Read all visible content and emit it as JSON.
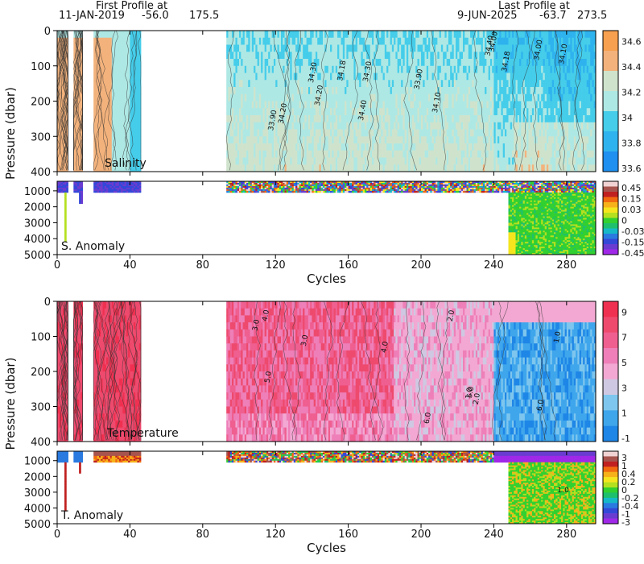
{
  "header": {
    "first_profile_label": "First Profile at",
    "first_profile_date": "11-JAN-2019",
    "first_profile_lat": "-56.0",
    "first_profile_lon": "175.5",
    "last_profile_label": "Last Profile at",
    "last_profile_date": "9-JUN-2025",
    "last_profile_lat": "-63.7",
    "last_profile_lon": "273.5"
  },
  "chart_data": [
    {
      "type": "heatmap",
      "panel": "salinity",
      "label": "Salinity",
      "ylabel": "Pressure (dbar)",
      "xlim": [
        0,
        296
      ],
      "ylim": [
        400,
        0
      ],
      "yticks": [
        0,
        100,
        200,
        300,
        400
      ],
      "xticks": [
        0,
        40,
        80,
        120,
        160,
        200,
        240,
        280
      ],
      "colorbar": {
        "levels": [
          "33.6",
          "33.8",
          "34",
          "34.2",
          "34.4",
          "34.6"
        ],
        "colors": [
          "#1f8ff0",
          "#2fb3ee",
          "#45cdea",
          "#aee8e4",
          "#cfe3cc",
          "#f3b27c",
          "#f7a050"
        ]
      },
      "contour_labels": [
        "34.00",
        "34.10",
        "34.20",
        "34.30",
        "34.40",
        "33.90",
        "34.18"
      ],
      "data_gaps": [
        [
          6,
          9
        ],
        [
          14,
          20
        ],
        [
          46,
          93
        ]
      ]
    },
    {
      "type": "heatmap",
      "panel": "salinity_anomaly",
      "label": "S. Anomaly",
      "xlabel": "Cycles",
      "xlim": [
        0,
        296
      ],
      "ylim": [
        5000,
        400
      ],
      "yticks": [
        1000,
        2000,
        3000,
        4000,
        5000
      ],
      "xticks": [
        0,
        40,
        80,
        120,
        160,
        200,
        240,
        280
      ],
      "colorbar": {
        "levels": [
          "0.45",
          "0.15",
          "0.03",
          "0",
          "-0.03",
          "-0.15",
          "-0.45"
        ],
        "colors": [
          "#f2d3d3",
          "#a8544e",
          "#c02020",
          "#f26a10",
          "#f7b21a",
          "#f5e51e",
          "#b4e020",
          "#32d030",
          "#1ec06e",
          "#16b8c8",
          "#2a7ae0",
          "#3448d8",
          "#6a3cd0",
          "#a028e8"
        ]
      }
    },
    {
      "type": "heatmap",
      "panel": "temperature",
      "label": "Temperature",
      "ylabel": "Pressure (dbar)",
      "xlim": [
        0,
        296
      ],
      "ylim": [
        400,
        0
      ],
      "yticks": [
        0,
        100,
        200,
        300,
        400
      ],
      "xticks": [
        0,
        40,
        80,
        120,
        160,
        200,
        240,
        280
      ],
      "colorbar": {
        "levels": [
          "-1",
          "1",
          "3",
          "5",
          "7",
          "9"
        ],
        "colors": [
          "#1e86e6",
          "#3fa6ec",
          "#7ec6ee",
          "#cfc8e2",
          "#f2a8d2",
          "#ee7fb8",
          "#ef5f90",
          "#ee4a6e",
          "#f03050"
        ]
      },
      "contour_labels": [
        "1.0",
        "2.0",
        "3.0",
        "4.0",
        "5.0",
        "6.0"
      ],
      "data_gaps": [
        [
          6,
          9
        ],
        [
          14,
          20
        ],
        [
          46,
          93
        ]
      ]
    },
    {
      "type": "heatmap",
      "panel": "temperature_anomaly",
      "label": "T. Anomaly",
      "xlabel": "Cycles",
      "xlim": [
        0,
        296
      ],
      "ylim": [
        5000,
        400
      ],
      "yticks": [
        1000,
        2000,
        3000,
        4000,
        5000
      ],
      "xticks": [
        0,
        40,
        80,
        120,
        160,
        200,
        240,
        280
      ],
      "colorbar": {
        "levels": [
          "3",
          "1",
          "0.4",
          "0.2",
          "0",
          "-0.2",
          "-0.4",
          "-1",
          "-3"
        ],
        "colors": [
          "#f2d3d3",
          "#a8544e",
          "#c02020",
          "#f26a10",
          "#f7b21a",
          "#f5e51e",
          "#b4e020",
          "#32d030",
          "#1ec06e",
          "#16b8c8",
          "#2a7ae0",
          "#3448d8",
          "#6a3cd0",
          "#a028e8"
        ]
      },
      "contour_labels": [
        "1.0"
      ]
    }
  ]
}
